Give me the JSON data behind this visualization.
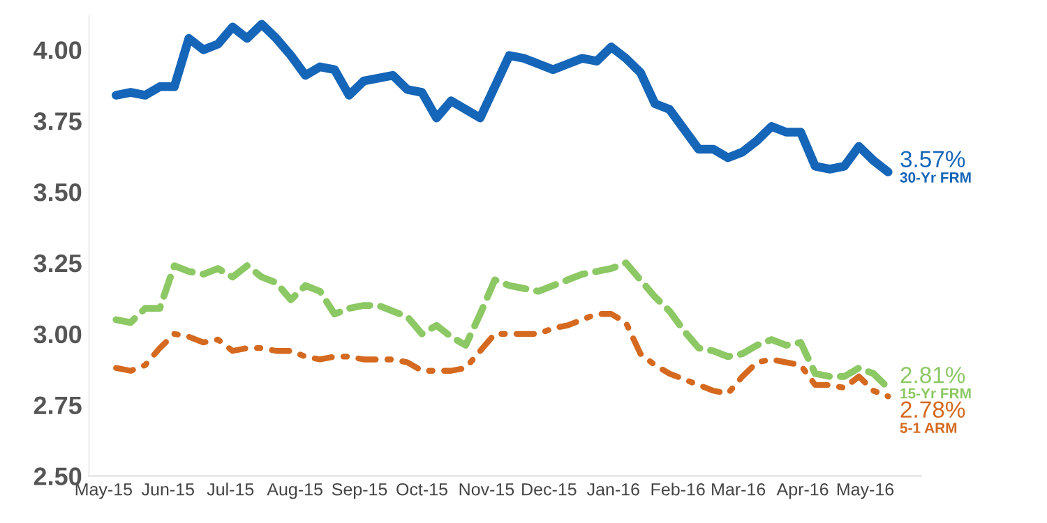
{
  "chart_data": {
    "type": "line",
    "x": [
      "2015-05-07",
      "2015-05-14",
      "2015-05-21",
      "2015-05-28",
      "2015-06-04",
      "2015-06-11",
      "2015-06-18",
      "2015-06-25",
      "2015-07-02",
      "2015-07-09",
      "2015-07-16",
      "2015-07-23",
      "2015-07-30",
      "2015-08-06",
      "2015-08-13",
      "2015-08-20",
      "2015-08-27",
      "2015-09-03",
      "2015-09-10",
      "2015-09-17",
      "2015-09-24",
      "2015-10-01",
      "2015-10-08",
      "2015-10-15",
      "2015-10-22",
      "2015-10-29",
      "2015-11-05",
      "2015-11-12",
      "2015-11-19",
      "2015-11-26",
      "2015-12-03",
      "2015-12-10",
      "2015-12-17",
      "2015-12-24",
      "2015-12-31",
      "2016-01-07",
      "2016-01-14",
      "2016-01-21",
      "2016-01-28",
      "2016-02-04",
      "2016-02-11",
      "2016-02-18",
      "2016-02-25",
      "2016-03-03",
      "2016-03-10",
      "2016-03-17",
      "2016-03-24",
      "2016-03-31",
      "2016-04-07",
      "2016-04-14",
      "2016-04-21",
      "2016-04-28",
      "2016-05-05",
      "2016-05-12"
    ],
    "series": [
      {
        "name": "30-Yr FRM",
        "color": "#1565b8",
        "line_style": "solid",
        "values": [
          3.84,
          3.85,
          3.84,
          3.87,
          3.87,
          4.04,
          4.0,
          4.02,
          4.08,
          4.04,
          4.09,
          4.04,
          3.98,
          3.91,
          3.94,
          3.93,
          3.84,
          3.89,
          3.9,
          3.91,
          3.86,
          3.85,
          3.76,
          3.82,
          3.79,
          3.76,
          3.87,
          3.98,
          3.97,
          3.95,
          3.93,
          3.95,
          3.97,
          3.96,
          4.01,
          3.97,
          3.92,
          3.81,
          3.79,
          3.72,
          3.65,
          3.65,
          3.62,
          3.64,
          3.68,
          3.73,
          3.71,
          3.71,
          3.59,
          3.58,
          3.59,
          3.66,
          3.61,
          3.57
        ],
        "value_labels": [
          null,
          null,
          null,
          null,
          null,
          null,
          null,
          null,
          null,
          null,
          null,
          null,
          null,
          null,
          null,
          null,
          null,
          null,
          null,
          null,
          null,
          null,
          null,
          null,
          null,
          null,
          null,
          null,
          null,
          null,
          null,
          null,
          null,
          null,
          null,
          null,
          null,
          null,
          null,
          null,
          null,
          null,
          null,
          null,
          null,
          null,
          null,
          null,
          null,
          null,
          null,
          null,
          null,
          "3.57%"
        ]
      },
      {
        "name": "15-Yr FRM",
        "color": "#8cc864",
        "line_style": "dashed",
        "values": [
          3.05,
          3.04,
          3.09,
          3.09,
          3.24,
          3.22,
          3.21,
          3.23,
          3.2,
          3.24,
          3.2,
          3.18,
          3.12,
          3.17,
          3.15,
          3.07,
          3.09,
          3.1,
          3.1,
          3.08,
          3.06,
          3.0,
          3.03,
          2.99,
          2.96,
          3.07,
          3.19,
          3.17,
          3.16,
          3.15,
          3.17,
          3.19,
          3.21,
          3.22,
          3.23,
          3.25,
          3.19,
          3.13,
          3.08,
          3.01,
          2.95,
          2.94,
          2.92,
          2.93,
          2.96,
          2.98,
          2.96,
          2.97,
          2.86,
          2.85,
          2.85,
          2.88,
          2.86,
          2.81
        ],
        "value_labels": [
          null,
          null,
          null,
          null,
          null,
          null,
          null,
          null,
          null,
          null,
          null,
          null,
          null,
          null,
          null,
          null,
          null,
          null,
          null,
          null,
          null,
          null,
          null,
          null,
          null,
          null,
          null,
          null,
          null,
          null,
          null,
          null,
          null,
          null,
          null,
          null,
          null,
          null,
          null,
          null,
          null,
          null,
          null,
          null,
          null,
          null,
          null,
          null,
          null,
          null,
          null,
          null,
          null,
          "2.81%"
        ]
      },
      {
        "name": "5-1 ARM",
        "color": "#d4691f",
        "line_style": "dashdot",
        "values": [
          2.88,
          2.87,
          2.89,
          2.95,
          3.0,
          2.99,
          2.97,
          2.98,
          2.94,
          2.95,
          2.95,
          2.94,
          2.94,
          2.92,
          2.91,
          2.92,
          2.92,
          2.91,
          2.91,
          2.91,
          2.9,
          2.87,
          2.87,
          2.87,
          2.88,
          2.94,
          3.0,
          3.0,
          3.0,
          3.0,
          3.02,
          3.03,
          3.05,
          3.07,
          3.07,
          3.04,
          2.93,
          2.89,
          2.86,
          2.84,
          2.82,
          2.8,
          2.79,
          2.85,
          2.9,
          2.91,
          2.9,
          2.89,
          2.82,
          2.82,
          2.81,
          2.85,
          2.8,
          2.78
        ],
        "value_labels": [
          null,
          null,
          null,
          null,
          null,
          null,
          null,
          null,
          null,
          null,
          null,
          null,
          null,
          null,
          null,
          null,
          null,
          null,
          null,
          null,
          null,
          null,
          null,
          null,
          null,
          null,
          null,
          null,
          null,
          null,
          null,
          null,
          null,
          null,
          null,
          null,
          null,
          null,
          null,
          null,
          null,
          null,
          null,
          null,
          null,
          null,
          null,
          null,
          null,
          null,
          null,
          null,
          null,
          "2.78%"
        ]
      }
    ],
    "xlim": [
      "2015-04-24",
      "2016-05-28"
    ],
    "xticks": [
      {
        "value": "2015-05-01",
        "label": "May-15"
      },
      {
        "value": "2015-06-01",
        "label": "Jun-15"
      },
      {
        "value": "2015-07-01",
        "label": "Jul-15"
      },
      {
        "value": "2015-08-01",
        "label": "Aug-15"
      },
      {
        "value": "2015-09-01",
        "label": "Sep-15"
      },
      {
        "value": "2015-10-01",
        "label": "Oct-15"
      },
      {
        "value": "2015-11-01",
        "label": "Nov-15"
      },
      {
        "value": "2015-12-01",
        "label": "Dec-15"
      },
      {
        "value": "2016-01-01",
        "label": "Jan-16"
      },
      {
        "value": "2016-02-01",
        "label": "Feb-16"
      },
      {
        "value": "2016-03-01",
        "label": "Mar-16"
      },
      {
        "value": "2016-04-01",
        "label": "Apr-16"
      },
      {
        "value": "2016-05-01",
        "label": "May-16"
      }
    ],
    "ylim": [
      2.5,
      4.12
    ],
    "yticks": [
      {
        "value": 2.5,
        "label": "2.50"
      },
      {
        "value": 2.75,
        "label": "2.75"
      },
      {
        "value": 3.0,
        "label": "3.00"
      },
      {
        "value": 3.25,
        "label": "3.25"
      },
      {
        "value": 3.5,
        "label": "3.50"
      },
      {
        "value": 3.75,
        "label": "3.75"
      },
      {
        "value": 4.0,
        "label": "4.00"
      }
    ],
    "grid": false,
    "legend": false
  }
}
